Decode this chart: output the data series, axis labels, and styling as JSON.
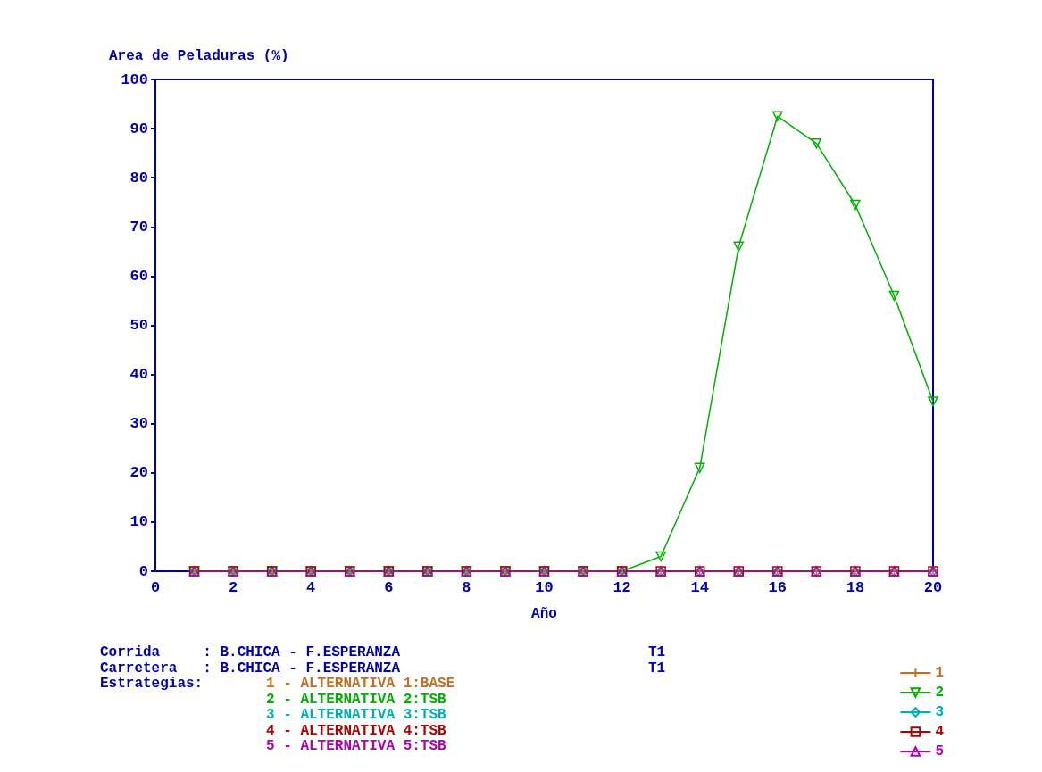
{
  "chart_data": {
    "type": "line",
    "ylabel": "Area de Peladuras (%)",
    "xlabel": "Año",
    "x": [
      1,
      2,
      3,
      4,
      5,
      6,
      7,
      8,
      9,
      10,
      11,
      12,
      13,
      14,
      15,
      16,
      17,
      18,
      19,
      20
    ],
    "xlim": [
      0,
      20
    ],
    "xticks": [
      0,
      2,
      4,
      6,
      8,
      10,
      12,
      14,
      16,
      18,
      20
    ],
    "ylim": [
      0,
      100
    ],
    "yticks": [
      0,
      10,
      20,
      30,
      40,
      50,
      60,
      70,
      80,
      90,
      100
    ],
    "grid": false,
    "legend": "bottom right",
    "line_style": "solid",
    "series": [
      {
        "name": "1",
        "color": "#c07020",
        "marker": "cross",
        "values": [
          0,
          0,
          0,
          0,
          0,
          0,
          0,
          0,
          0,
          0,
          0,
          0,
          0,
          0,
          0,
          0,
          0,
          0,
          0,
          0
        ]
      },
      {
        "name": "2",
        "color": "#00b000",
        "marker": "triangle-down",
        "values": [
          0,
          0,
          0,
          0,
          0,
          0,
          0,
          0,
          0,
          0,
          0,
          0,
          3,
          21,
          66,
          92.5,
          87,
          74.5,
          56,
          34.5
        ]
      },
      {
        "name": "3",
        "color": "#00b0b0",
        "marker": "diamond",
        "values": [
          0,
          0,
          0,
          0,
          0,
          0,
          0,
          0,
          0,
          0,
          0,
          0,
          0,
          0,
          0,
          0,
          0,
          0,
          0,
          0
        ]
      },
      {
        "name": "4",
        "color": "#b00000",
        "marker": "square",
        "values": [
          0,
          0,
          0,
          0,
          0,
          0,
          0,
          0,
          0,
          0,
          0,
          0,
          0,
          0,
          0,
          0,
          0,
          0,
          0,
          0
        ]
      },
      {
        "name": "5",
        "color": "#b000b0",
        "marker": "triangle",
        "values": [
          0,
          0,
          0,
          0,
          0,
          0,
          0,
          0,
          0,
          0,
          0,
          0,
          0,
          0,
          0,
          0,
          0,
          0,
          0,
          0
        ]
      }
    ],
    "annotations": [
      "Corrida     : B.CHICA - F.ESPERANZA",
      "T1",
      "Carretera   : B.CHICA - F.ESPERANZA",
      "T1",
      "Estrategias:",
      "1 - ALTERNATIVA 1:BASE",
      "2 - ALTERNATIVA 2:TSB",
      "3 - ALTERNATIVA 3:TSB",
      "4 - ALTERNATIVA 4:TSB",
      "5 - ALTERNATIVA 5:TSB"
    ]
  }
}
